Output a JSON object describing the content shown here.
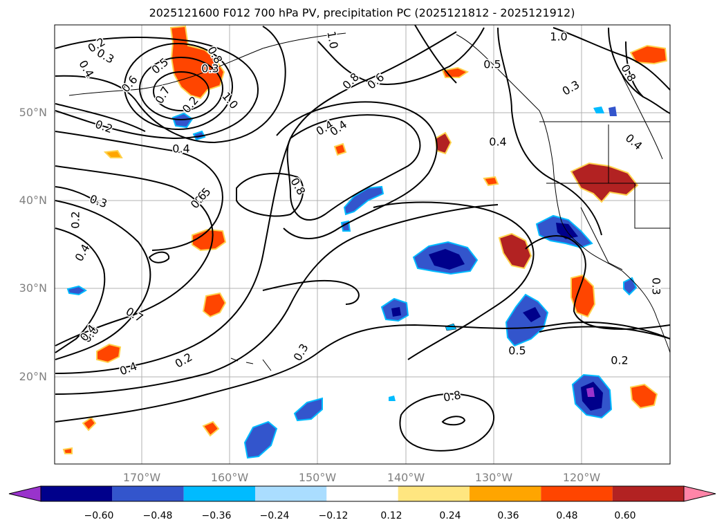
{
  "title": "2025121600 F012 700 hPa PV, precipitation PC (2025121812 - 2025121912)",
  "lat_labels": [
    "50°N",
    "40°N",
    "30°N",
    "20°N"
  ],
  "lon_labels": [
    "170°W",
    "160°W",
    "150°W",
    "140°W",
    "130°W",
    "120°W"
  ],
  "contour_labels": [
    "0.2",
    "0.3",
    "0.4",
    "0.5",
    "0.6",
    "0.7",
    "0.8",
    "1.0",
    "0.2",
    "0.3",
    "0.4",
    "0.5",
    "0.8",
    "0.6",
    "0.4",
    "0.3",
    "0.2",
    "0.4",
    "0.4",
    "0.3",
    "0.2",
    "0.3",
    "0.2",
    "0.6",
    "0.7",
    "0.4",
    "0.8",
    "1.0",
    "0.8",
    "0.4",
    "0.4",
    "0.3",
    "0.2",
    "0.5",
    "0.6",
    "0.4",
    "1.0",
    "0.3",
    "0.5",
    "0.8"
  ],
  "colorbar": {
    "ticks": [
      "−0.60",
      "−0.48",
      "−0.36",
      "−0.24",
      "−0.12",
      "0.12",
      "0.24",
      "0.36",
      "0.48",
      "0.60"
    ],
    "colors": [
      "#9933cc",
      "#00008b",
      "#3355cc",
      "#00bbff",
      "#aaddff",
      "#ffffff",
      "#ffe680",
      "#ffa500",
      "#ff4500",
      "#b22222",
      "#ff85a8"
    ]
  },
  "colors": {
    "contour": "#000000",
    "grid": "#b0b0b0",
    "coast": "#000000"
  }
}
